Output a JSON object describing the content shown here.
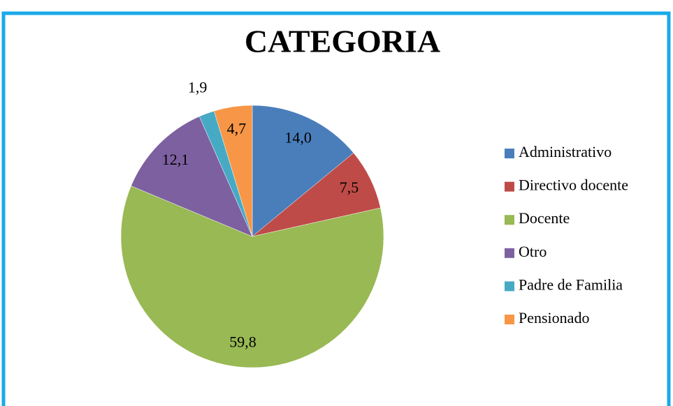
{
  "chart_data": {
    "type": "pie",
    "title": "CATEGORIA",
    "categories": [
      "Administrativo",
      "Directivo docente",
      "Docente",
      "Otro",
      "Padre de Familia",
      "Pensionado"
    ],
    "values": [
      14.0,
      7.5,
      59.8,
      12.1,
      1.9,
      4.7
    ],
    "value_labels": [
      "14,0",
      "7,5",
      "59,8",
      "12,1",
      "1,9",
      "4,7"
    ],
    "colors": [
      "#4a7ebb",
      "#be4b48",
      "#98b954",
      "#7d60a0",
      "#46aac5",
      "#f79646"
    ],
    "legend": "right"
  }
}
